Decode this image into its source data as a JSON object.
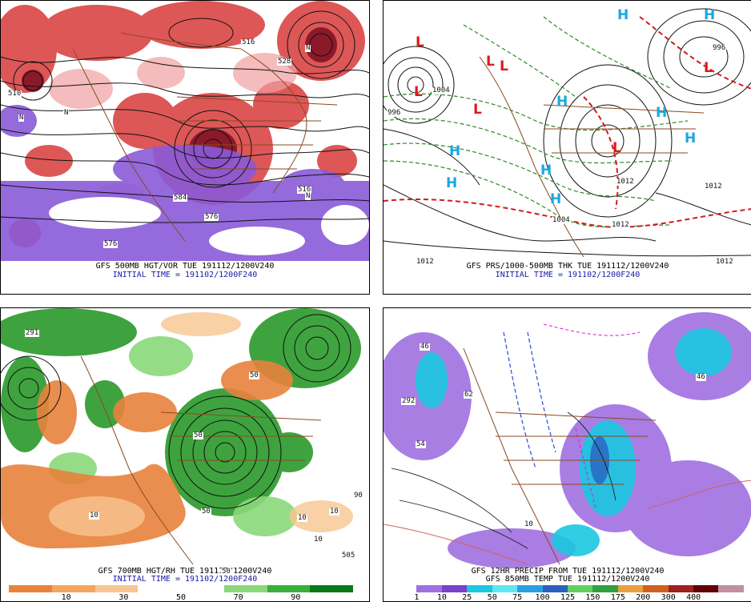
{
  "panels": [
    {
      "id": "top-left",
      "caption_line1": "GFS 500MB HGT/VOR TUE 191112/1200V240",
      "caption_line2": "INITIAL TIME = 191102/1200F240",
      "contour_labels": [
        "516",
        "528",
        "510",
        "516",
        "576",
        "584",
        "576",
        "N",
        "N",
        "N",
        "N"
      ]
    },
    {
      "id": "top-right",
      "caption_line1": "GFS PRS/1000-500MB THK TUE 191112/1200V240",
      "caption_line2": "INITIAL TIME = 191102/1200F240",
      "contour_labels": [
        "1012",
        "996",
        "1004",
        "1012",
        "1012",
        "1004",
        "1012",
        "1012",
        "996"
      ],
      "pressure_centers": [
        "L",
        "L",
        "L",
        "L",
        "L",
        "L",
        "L",
        "H",
        "H",
        "H",
        "H",
        "H",
        "H",
        "H",
        "H",
        "H"
      ]
    },
    {
      "id": "bottom-left",
      "caption_line1": "GFS 700MB HGT/RH TUE 191112/1200V240",
      "caption_line2": "INITIAL TIME = 191102/1200F240",
      "contour_labels": [
        "291",
        "50",
        "10",
        "10",
        "50",
        "10",
        "50",
        "90",
        "10",
        "50",
        "505"
      ],
      "colorbar": {
        "colors": [
          "#e8823c",
          "#f2a660",
          "#f8c690",
          "#ffffff",
          "#ffffff",
          "#8ad87a",
          "#38b03a",
          "#0a7a18"
        ],
        "labels": [
          "10",
          "30",
          "50",
          "70",
          "90"
        ]
      }
    },
    {
      "id": "bottom-right",
      "caption_line1": "GFS 12HR PRECIP FROM TUE 191112/1200V240",
      "caption_line2": "GFS 850MB TEMP TUE 191112/1200V240",
      "contour_labels": [
        "46",
        "46",
        "54",
        "292",
        "62",
        "10"
      ],
      "colorbar": {
        "colors": [
          "#ffffff",
          "#a070e0",
          "#7a40c8",
          "#1ac8e0",
          "#60e8f0",
          "#2aa0e0",
          "#2a60c0",
          "#60d060",
          "#30a040",
          "#e8a040",
          "#d06020",
          "#a02020",
          "#600000",
          "#c090a0"
        ],
        "labels": [
          "1",
          "10",
          "25",
          "50",
          "75",
          "100",
          "125",
          "150",
          "175",
          "200",
          "300",
          "400"
        ]
      }
    }
  ]
}
